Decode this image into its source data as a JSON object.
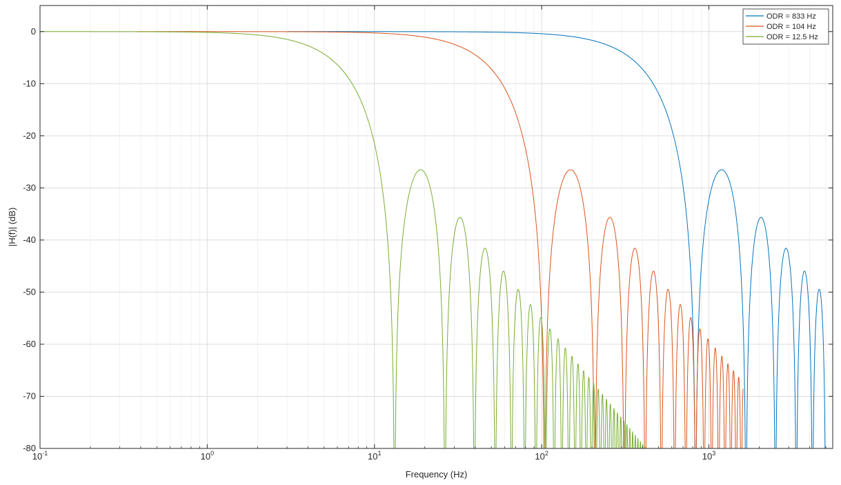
{
  "chart_data": {
    "type": "line",
    "title": "",
    "xlabel": "Frequency (Hz)",
    "ylabel": "|H(f)| (dB)",
    "x_scale": "log",
    "xlim": [
      0.1,
      5500
    ],
    "ylim": [
      -80,
      5
    ],
    "x_ticks": [
      {
        "value": 0.1,
        "base": "10",
        "exp": "-1"
      },
      {
        "value": 1,
        "base": "10",
        "exp": "0"
      },
      {
        "value": 10,
        "base": "10",
        "exp": "1"
      },
      {
        "value": 100,
        "base": "10",
        "exp": "2"
      },
      {
        "value": 1000,
        "base": "10",
        "exp": "3"
      }
    ],
    "y_ticks": [
      {
        "value": 0,
        "label": "0"
      },
      {
        "value": -10,
        "label": "-10"
      },
      {
        "value": -20,
        "label": "-20"
      },
      {
        "value": -30,
        "label": "-30"
      },
      {
        "value": -40,
        "label": "-40"
      },
      {
        "value": -50,
        "label": "-50"
      },
      {
        "value": -60,
        "label": "-60"
      },
      {
        "value": -70,
        "label": "-70"
      },
      {
        "value": -80,
        "label": "-80"
      }
    ],
    "grid": true,
    "legend_position": "top-right",
    "series": [
      {
        "name": "ODR = 833 Hz",
        "color": "#0072BD",
        "first_null_hz": 833,
        "x_range": [
          3,
          5000
        ]
      },
      {
        "name": "ODR = 104 Hz",
        "color": "#D95319",
        "first_null_hz": 104,
        "x_range": [
          0.38,
          1600
        ]
      },
      {
        "name": "ODR = 12.5 Hz",
        "color": "#77AC30",
        "first_null_hz": 13.2,
        "x_range": [
          0.1,
          420
        ]
      }
    ]
  }
}
